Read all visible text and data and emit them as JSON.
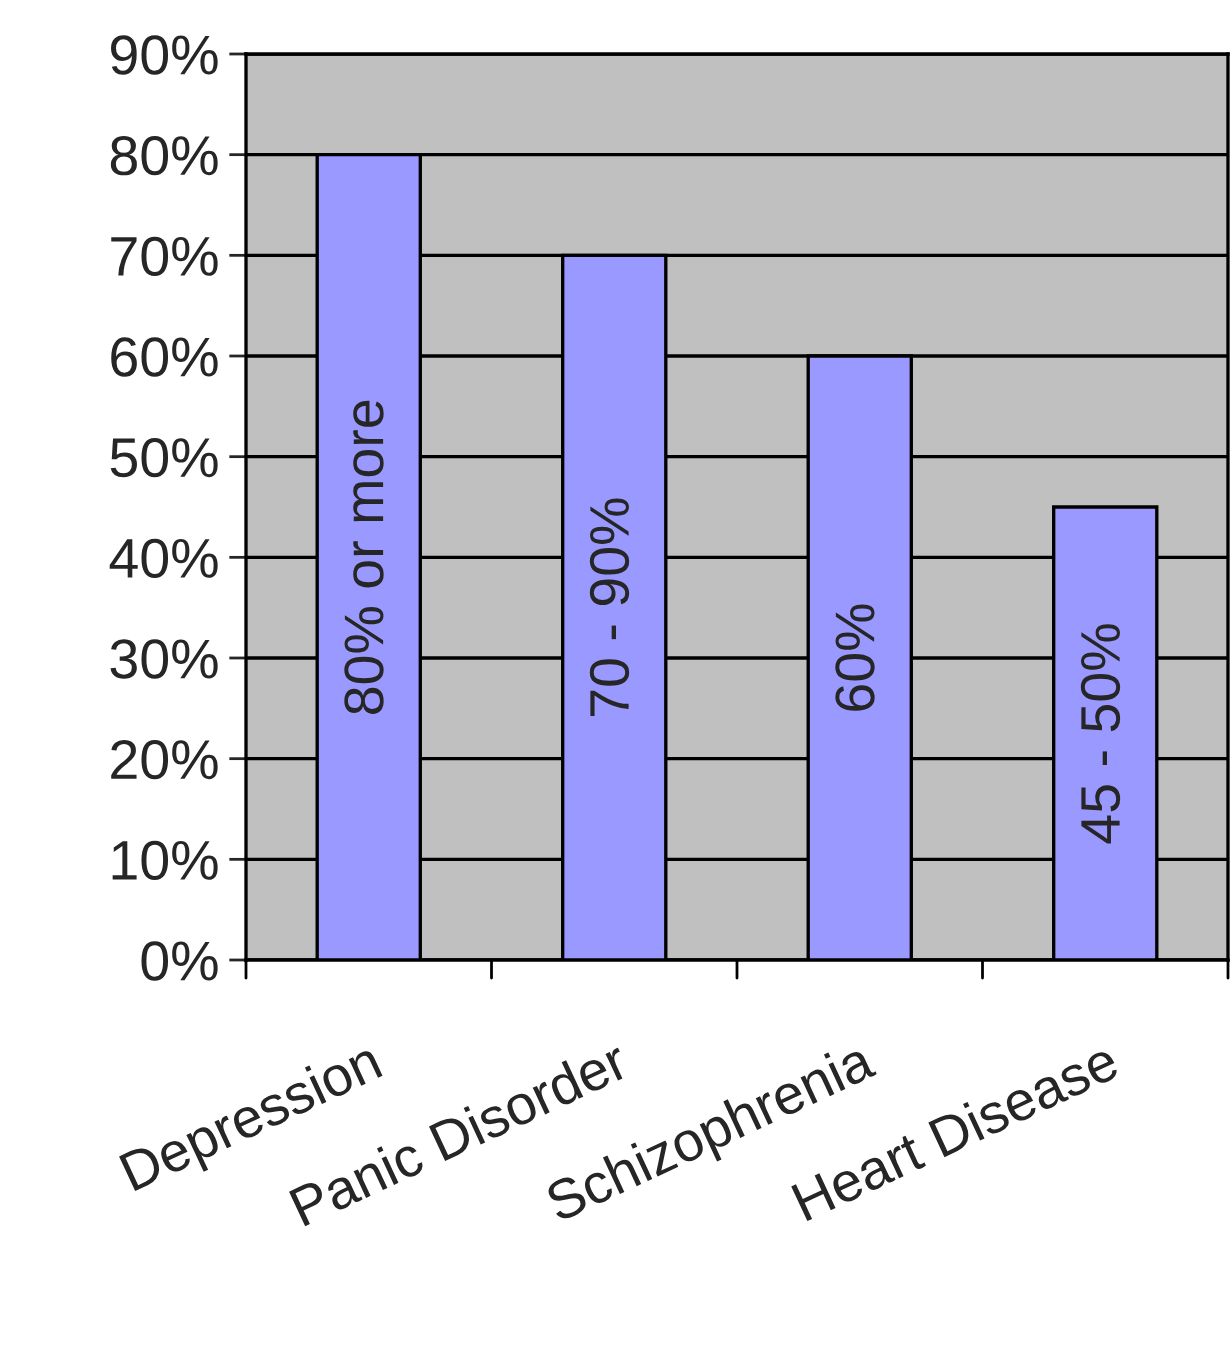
{
  "chart_data": {
    "type": "bar",
    "categories": [
      "Depression",
      "Panic Disorder",
      "Schizophrenia",
      "Heart Disease"
    ],
    "values": [
      80,
      70,
      60,
      45
    ],
    "value_labels": [
      "80% or more",
      "70 - 90%",
      "60%",
      "45 - 50%"
    ],
    "color": "#9999ff",
    "ylim": [
      0,
      90
    ],
    "yticks": [
      {
        "value": 0,
        "label": "0%"
      },
      {
        "value": 10,
        "label": "10%"
      },
      {
        "value": 20,
        "label": "20%"
      },
      {
        "value": 30,
        "label": "30%"
      },
      {
        "value": 40,
        "label": "40%"
      },
      {
        "value": 50,
        "label": "50%"
      },
      {
        "value": 60,
        "label": "60%"
      },
      {
        "value": 70,
        "label": "70%"
      },
      {
        "value": 80,
        "label": "80%"
      },
      {
        "value": 90,
        "label": "90%"
      }
    ],
    "grid": "y"
  }
}
